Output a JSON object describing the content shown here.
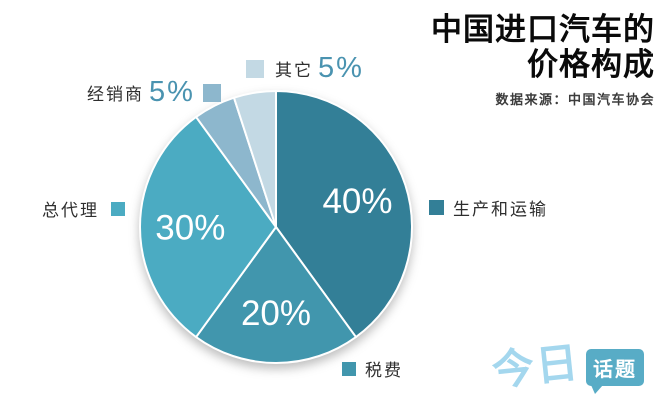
{
  "header": {
    "title_line1": "中国进口汽车的",
    "title_line2": "价格构成",
    "source": "数据来源：中国汽车协会"
  },
  "chart_data": {
    "type": "pie",
    "title": "中国进口汽车的价格构成",
    "source_note": "数据来源：中国汽车协会",
    "categories": [
      "生产和运输",
      "税费",
      "总代理",
      "经销商",
      "其它"
    ],
    "slice_keys": [
      "production",
      "tax",
      "agent",
      "dealer",
      "other"
    ],
    "values": [
      40,
      20,
      30,
      5,
      5
    ],
    "unit": "%",
    "inside_labels": [
      "40%",
      "20%",
      "30%",
      "",
      ""
    ],
    "colors": [
      "#337f97",
      "#4196ad",
      "#4babc2",
      "#8db7cd",
      "#c3d9e4"
    ],
    "start_angle_deg": 0,
    "direction": "clockwise",
    "legend_position": "around",
    "accent_colors": {
      "percent_text": "#4a93b0",
      "logo_light_blue": "#a4d7ee",
      "logo_bubble_teal": "#58acc6"
    }
  },
  "legend": {
    "production": {
      "label": "生产和运输"
    },
    "tax": {
      "label": "税费"
    },
    "agent": {
      "label": "总代理"
    },
    "dealer": {
      "label": "经销商",
      "value": "5%"
    },
    "other": {
      "label": "其它",
      "value": "5%"
    }
  },
  "logo": {
    "part1": "今日",
    "part2": "话题"
  }
}
